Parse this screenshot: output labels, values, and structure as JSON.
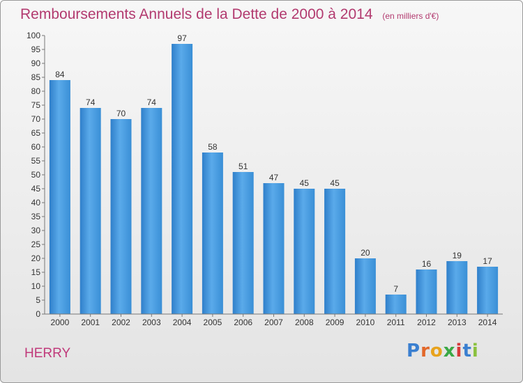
{
  "title": {
    "main": "Remboursements Annuels de la Dette de 2000 à 2014",
    "unit": "(en milliers d'€)"
  },
  "place_label": "HERRY",
  "logo_text": "Proxiti",
  "colors": {
    "title": "#b23a6f",
    "bar": "#4a9ee0",
    "place": "#c0397a"
  },
  "chart_data": {
    "type": "bar",
    "categories": [
      "2000",
      "2001",
      "2002",
      "2003",
      "2004",
      "2005",
      "2006",
      "2007",
      "2008",
      "2009",
      "2010",
      "2011",
      "2012",
      "2013",
      "2014"
    ],
    "values": [
      84,
      74,
      70,
      74,
      97,
      58,
      51,
      47,
      45,
      45,
      20,
      7,
      16,
      19,
      17
    ],
    "ylim": [
      0,
      100
    ],
    "ytick_step": 5,
    "grid": false,
    "data_labels": true
  }
}
